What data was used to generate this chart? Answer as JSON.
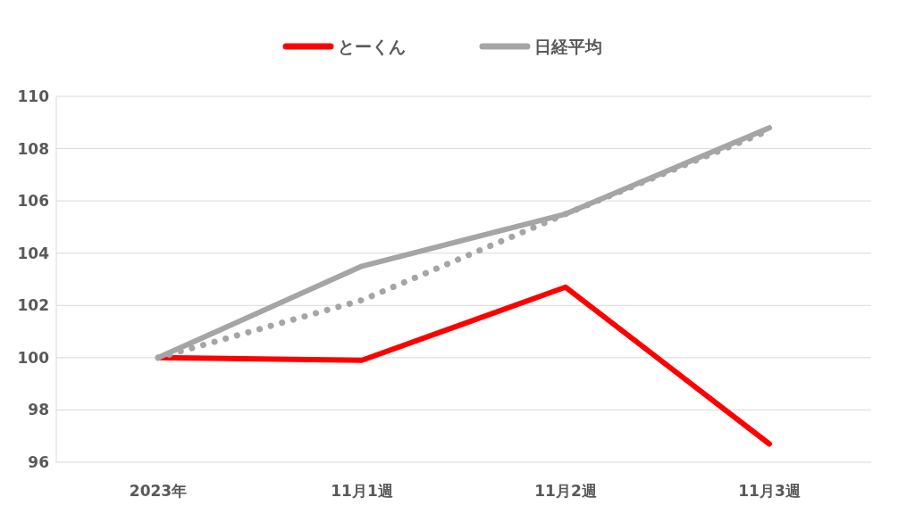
{
  "chart_data": {
    "type": "line",
    "categories": [
      "2023年",
      "11月1週",
      "11月2週",
      "11月3週"
    ],
    "series": [
      {
        "name": "とーくん",
        "color": "#ff0000",
        "values": [
          100,
          99.9,
          102.7,
          96.7
        ]
      },
      {
        "name": "日経平均",
        "color": "#a5a5a5",
        "values": [
          100,
          103.5,
          105.5,
          108.8
        ]
      },
      {
        "color": "#a5a5a5",
        "values": [
          100,
          102.2,
          105.5,
          108.7
        ],
        "line_style": "dotted"
      }
    ],
    "ylim": [
      96,
      110
    ],
    "yticks": [
      96,
      98,
      100,
      102,
      104,
      106,
      108,
      110
    ],
    "grid": "y",
    "legend": "top",
    "marker": "none"
  }
}
